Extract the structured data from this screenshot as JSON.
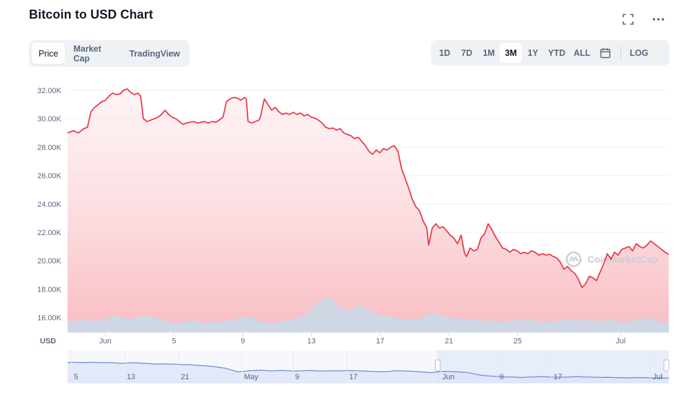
{
  "title": "Bitcoin to USD Chart",
  "icons": {
    "fullscreen": "expand-icon",
    "more": "more-horizontal-icon",
    "calendar": "calendar-icon",
    "logo": "coinmarketcap-logo-icon"
  },
  "tabs": [
    {
      "label": "Price",
      "active": true
    },
    {
      "label": "Market Cap",
      "active": false
    },
    {
      "label": "TradingView",
      "active": false
    }
  ],
  "ranges": [
    {
      "label": "1D",
      "active": false
    },
    {
      "label": "7D",
      "active": false
    },
    {
      "label": "1M",
      "active": false
    },
    {
      "label": "3M",
      "active": true
    },
    {
      "label": "1Y",
      "active": false
    },
    {
      "label": "YTD",
      "active": false
    },
    {
      "label": "ALL",
      "active": false
    }
  ],
  "log_label": "LOG",
  "watermark_text": "CoinMarketCap",
  "colors": {
    "line": "#ea3943",
    "area_top": "#fbd7da",
    "volume": "#cfd6e4",
    "navigator_line": "#6f8fd9",
    "navigator_fill": "#e5ebfa"
  },
  "chart_data": {
    "type": "line",
    "unit_label": "USD",
    "y_ticks": [
      "32.00K",
      "30.00K",
      "28.00K",
      "26.00K",
      "24.00K",
      "22.00K",
      "20.00K",
      "18.00K",
      "16.00K"
    ],
    "y_tick_values": [
      32000,
      30000,
      28000,
      26000,
      24000,
      22000,
      20000,
      18000,
      16000
    ],
    "ylim": [
      15800,
      32200
    ],
    "x_ticks": [
      {
        "label": "Jun",
        "t": 2.2
      },
      {
        "label": "5",
        "t": 6.2
      },
      {
        "label": "9",
        "t": 10.2
      },
      {
        "label": "13",
        "t": 14.2
      },
      {
        "label": "17",
        "t": 18.2
      },
      {
        "label": "21",
        "t": 22.2
      },
      {
        "label": "25",
        "t": 26.2
      },
      {
        "label": "Jul",
        "t": 32.2
      }
    ],
    "xlim": [
      0,
      35
    ],
    "series": [
      {
        "points": [
          [
            0,
            29000
          ],
          [
            0.3,
            29150
          ],
          [
            0.6,
            29000
          ],
          [
            0.9,
            29300
          ],
          [
            1.1,
            29400
          ],
          [
            1.3,
            30500
          ],
          [
            1.5,
            30800
          ],
          [
            1.7,
            31000
          ],
          [
            1.9,
            31200
          ],
          [
            2.1,
            31300
          ],
          [
            2.3,
            31600
          ],
          [
            2.5,
            31800
          ],
          [
            2.7,
            31700
          ],
          [
            2.9,
            31750
          ],
          [
            3.1,
            32000
          ],
          [
            3.3,
            32100
          ],
          [
            3.5,
            31850
          ],
          [
            3.7,
            31700
          ],
          [
            3.9,
            31800
          ],
          [
            4.05,
            31600
          ],
          [
            4.2,
            30000
          ],
          [
            4.4,
            29800
          ],
          [
            4.6,
            29900
          ],
          [
            4.8,
            30000
          ],
          [
            5.0,
            30100
          ],
          [
            5.2,
            30300
          ],
          [
            5.4,
            30600
          ],
          [
            5.6,
            30300
          ],
          [
            5.8,
            30100
          ],
          [
            6.0,
            30000
          ],
          [
            6.2,
            29800
          ],
          [
            6.4,
            29600
          ],
          [
            6.6,
            29700
          ],
          [
            6.8,
            29750
          ],
          [
            7.0,
            29800
          ],
          [
            7.2,
            29700
          ],
          [
            7.4,
            29750
          ],
          [
            7.6,
            29800
          ],
          [
            7.8,
            29700
          ],
          [
            8.0,
            29800
          ],
          [
            8.2,
            29750
          ],
          [
            8.4,
            29900
          ],
          [
            8.6,
            30100
          ],
          [
            8.7,
            30600
          ],
          [
            8.8,
            31200
          ],
          [
            9.0,
            31400
          ],
          [
            9.2,
            31500
          ],
          [
            9.4,
            31450
          ],
          [
            9.6,
            31300
          ],
          [
            9.8,
            31500
          ],
          [
            9.9,
            31400
          ],
          [
            10.0,
            29800
          ],
          [
            10.2,
            29700
          ],
          [
            10.4,
            29800
          ],
          [
            10.6,
            29900
          ],
          [
            10.7,
            30200
          ],
          [
            10.9,
            31400
          ],
          [
            11.1,
            31000
          ],
          [
            11.3,
            30600
          ],
          [
            11.5,
            30800
          ],
          [
            11.7,
            30500
          ],
          [
            11.9,
            30300
          ],
          [
            12.1,
            30400
          ],
          [
            12.3,
            30300
          ],
          [
            12.5,
            30450
          ],
          [
            12.7,
            30300
          ],
          [
            12.9,
            30400
          ],
          [
            13.1,
            30200
          ],
          [
            13.3,
            30300
          ],
          [
            13.5,
            30100
          ],
          [
            13.7,
            30050
          ],
          [
            13.9,
            29900
          ],
          [
            14.1,
            29700
          ],
          [
            14.3,
            29400
          ],
          [
            14.5,
            29300
          ],
          [
            14.7,
            29350
          ],
          [
            14.9,
            29200
          ],
          [
            15.1,
            29300
          ],
          [
            15.3,
            29000
          ],
          [
            15.5,
            28900
          ],
          [
            15.7,
            28800
          ],
          [
            15.9,
            28600
          ],
          [
            16.1,
            28700
          ],
          [
            16.3,
            28400
          ],
          [
            16.5,
            28100
          ],
          [
            16.7,
            27700
          ],
          [
            16.9,
            27500
          ],
          [
            17.1,
            27800
          ],
          [
            17.3,
            27600
          ],
          [
            17.5,
            27900
          ],
          [
            17.7,
            27800
          ],
          [
            17.9,
            28000
          ],
          [
            18.1,
            28100
          ],
          [
            18.3,
            27700
          ],
          [
            18.5,
            26500
          ],
          [
            18.7,
            25800
          ],
          [
            18.9,
            25100
          ],
          [
            19.1,
            24300
          ],
          [
            19.3,
            23800
          ],
          [
            19.5,
            23500
          ],
          [
            19.7,
            22800
          ],
          [
            19.9,
            22300
          ],
          [
            20.0,
            21100
          ],
          [
            20.2,
            22300
          ],
          [
            20.4,
            22600
          ],
          [
            20.6,
            22300
          ],
          [
            20.8,
            22400
          ],
          [
            21.0,
            22100
          ],
          [
            21.2,
            21800
          ],
          [
            21.4,
            21600
          ],
          [
            21.6,
            21200
          ],
          [
            21.8,
            21800
          ],
          [
            22.0,
            20500
          ],
          [
            22.1,
            20300
          ],
          [
            22.3,
            20900
          ],
          [
            22.5,
            20700
          ],
          [
            22.7,
            20800
          ],
          [
            22.9,
            21600
          ],
          [
            23.1,
            21900
          ],
          [
            23.3,
            22600
          ],
          [
            23.5,
            22200
          ],
          [
            23.7,
            21700
          ],
          [
            23.9,
            21300
          ],
          [
            24.1,
            20900
          ],
          [
            24.3,
            20800
          ],
          [
            24.5,
            20600
          ],
          [
            24.7,
            20800
          ],
          [
            24.9,
            20700
          ],
          [
            25.1,
            20500
          ],
          [
            25.3,
            20600
          ],
          [
            25.5,
            20500
          ],
          [
            25.7,
            20700
          ],
          [
            25.9,
            20600
          ],
          [
            26.1,
            20400
          ],
          [
            26.3,
            20500
          ],
          [
            26.5,
            20400
          ],
          [
            26.7,
            20450
          ],
          [
            26.9,
            20300
          ],
          [
            27.1,
            20200
          ],
          [
            27.3,
            19900
          ],
          [
            27.5,
            19400
          ],
          [
            27.7,
            19600
          ],
          [
            27.9,
            19300
          ],
          [
            28.1,
            19100
          ],
          [
            28.3,
            18700
          ],
          [
            28.5,
            18100
          ],
          [
            28.7,
            18400
          ],
          [
            28.9,
            18900
          ],
          [
            29.1,
            18800
          ],
          [
            29.3,
            18600
          ],
          [
            29.5,
            19200
          ],
          [
            29.7,
            19800
          ],
          [
            29.9,
            20500
          ],
          [
            30.1,
            20100
          ],
          [
            30.3,
            20600
          ],
          [
            30.5,
            20400
          ],
          [
            30.7,
            20800
          ],
          [
            30.9,
            20900
          ],
          [
            31.1,
            21000
          ],
          [
            31.3,
            20700
          ],
          [
            31.5,
            21200
          ],
          [
            31.7,
            21000
          ],
          [
            31.9,
            20900
          ],
          [
            32.1,
            21100
          ],
          [
            32.3,
            21400
          ],
          [
            32.5,
            21200
          ],
          [
            32.7,
            21000
          ],
          [
            32.9,
            20800
          ],
          [
            33.1,
            20600
          ],
          [
            33.3,
            20450
          ]
        ]
      }
    ],
    "volume": [
      0.28,
      0.3,
      0.33,
      0.35,
      0.31,
      0.29,
      0.3,
      0.34,
      0.36,
      0.4,
      0.42,
      0.38,
      0.36,
      0.34,
      0.38,
      0.41,
      0.44,
      0.4,
      0.37,
      0.35,
      0.3,
      0.28,
      0.25,
      0.24,
      0.26,
      0.28,
      0.3,
      0.29,
      0.27,
      0.25,
      0.26,
      0.27,
      0.28,
      0.3,
      0.32,
      0.35,
      0.37,
      0.38,
      0.4,
      0.36,
      0.3,
      0.27,
      0.25,
      0.24,
      0.26,
      0.28,
      0.3,
      0.33,
      0.36,
      0.4,
      0.45,
      0.55,
      0.68,
      0.8,
      0.88,
      0.9,
      0.82,
      0.7,
      0.6,
      0.55,
      0.58,
      0.65,
      0.7,
      0.62,
      0.55,
      0.48,
      0.45,
      0.42,
      0.4,
      0.38,
      0.36,
      0.34,
      0.33,
      0.32,
      0.34,
      0.38,
      0.44,
      0.5,
      0.48,
      0.44,
      0.4,
      0.38,
      0.36,
      0.35,
      0.34,
      0.33,
      0.32,
      0.31,
      0.3,
      0.3,
      0.3,
      0.29,
      0.28,
      0.29,
      0.3,
      0.31,
      0.32,
      0.33,
      0.32,
      0.3,
      0.29,
      0.28,
      0.28,
      0.29,
      0.3,
      0.31,
      0.32,
      0.34,
      0.35,
      0.33,
      0.31,
      0.3,
      0.29,
      0.3,
      0.31,
      0.32,
      0.3,
      0.28,
      0.27,
      0.28,
      0.3,
      0.33,
      0.36,
      0.38,
      0.34,
      0.3,
      0.27,
      0.25
    ],
    "navigator": {
      "x_ticks": [
        {
          "label": "5",
          "t": 0.7
        },
        {
          "label": "13",
          "t": 9.5
        },
        {
          "label": "21",
          "t": 18.5
        },
        {
          "label": "May",
          "t": 29
        },
        {
          "label": "9",
          "t": 37.5
        },
        {
          "label": "17",
          "t": 46.5
        },
        {
          "label": "Jun",
          "t": 62
        },
        {
          "label": "9",
          "t": 71.5
        },
        {
          "label": "17",
          "t": 80.5
        },
        {
          "label": "Jul",
          "t": 97
        }
      ],
      "xlim": [
        0,
        100
      ],
      "selection": [
        61.5,
        100
      ],
      "values": [
        0.82,
        0.83,
        0.82,
        0.82,
        0.83,
        0.82,
        0.81,
        0.82,
        0.8,
        0.78,
        0.8,
        0.81,
        0.79,
        0.78,
        0.76,
        0.75,
        0.76,
        0.75,
        0.74,
        0.72,
        0.73,
        0.7,
        0.68,
        0.66,
        0.64,
        0.6,
        0.56,
        0.48,
        0.4,
        0.42,
        0.45,
        0.46,
        0.47,
        0.45,
        0.44,
        0.46,
        0.45,
        0.43,
        0.44,
        0.45,
        0.46,
        0.44,
        0.43,
        0.44,
        0.45,
        0.44,
        0.46,
        0.45,
        0.44,
        0.43,
        0.42,
        0.41,
        0.4,
        0.42,
        0.45,
        0.44,
        0.43,
        0.42,
        0.4,
        0.38,
        0.36,
        0.4,
        0.42,
        0.41,
        0.4,
        0.38,
        0.36,
        0.3,
        0.25,
        0.22,
        0.2,
        0.18,
        0.16,
        0.17,
        0.15,
        0.14,
        0.16,
        0.17,
        0.18,
        0.17,
        0.16,
        0.15,
        0.16,
        0.17,
        0.18,
        0.17,
        0.16,
        0.15,
        0.14,
        0.15,
        0.14,
        0.13,
        0.12,
        0.13,
        0.14,
        0.13,
        0.12,
        0.11,
        0.12,
        0.11
      ]
    }
  }
}
